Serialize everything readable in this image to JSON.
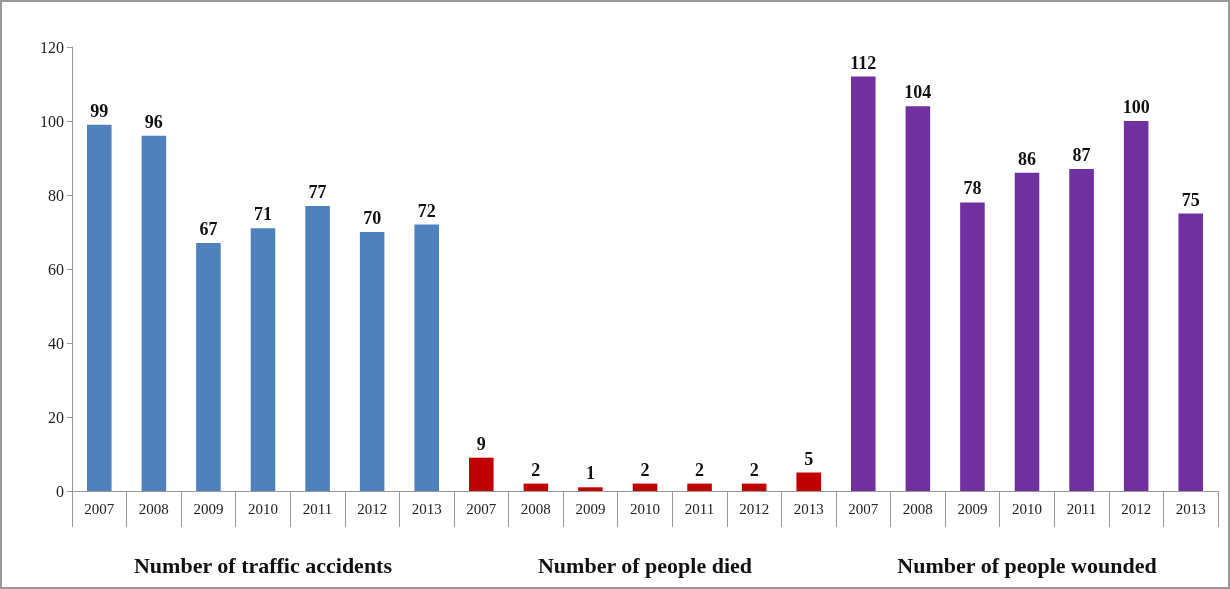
{
  "chart_data": {
    "type": "bar",
    "categories": [
      "2007",
      "2008",
      "2009",
      "2010",
      "2011",
      "2012",
      "2013",
      "2007",
      "2008",
      "2009",
      "2010",
      "2011",
      "2012",
      "2013",
      "2007",
      "2008",
      "2009",
      "2010",
      "2011",
      "2012",
      "2013"
    ],
    "series": [
      {
        "name": "Number of traffic accidents",
        "color": "#4f81bd",
        "values": [
          99,
          96,
          67,
          71,
          77,
          70,
          72,
          null,
          null,
          null,
          null,
          null,
          null,
          null,
          null,
          null,
          null,
          null,
          null,
          null,
          null
        ]
      },
      {
        "name": "Number of people died",
        "color": "#c00000",
        "values": [
          null,
          null,
          null,
          null,
          null,
          null,
          null,
          9,
          2,
          1,
          2,
          2,
          2,
          5,
          null,
          null,
          null,
          null,
          null,
          null,
          null
        ]
      },
      {
        "name": "Number of people wounded",
        "color": "#7030a0",
        "values": [
          null,
          null,
          null,
          null,
          null,
          null,
          null,
          null,
          null,
          null,
          null,
          null,
          null,
          null,
          112,
          104,
          78,
          86,
          87,
          100,
          75
        ]
      }
    ],
    "ylim": [
      0,
      120
    ],
    "yticks": [
      0,
      20,
      40,
      60,
      80,
      100,
      120
    ],
    "data_labels": true,
    "grid": false,
    "legend": false
  }
}
